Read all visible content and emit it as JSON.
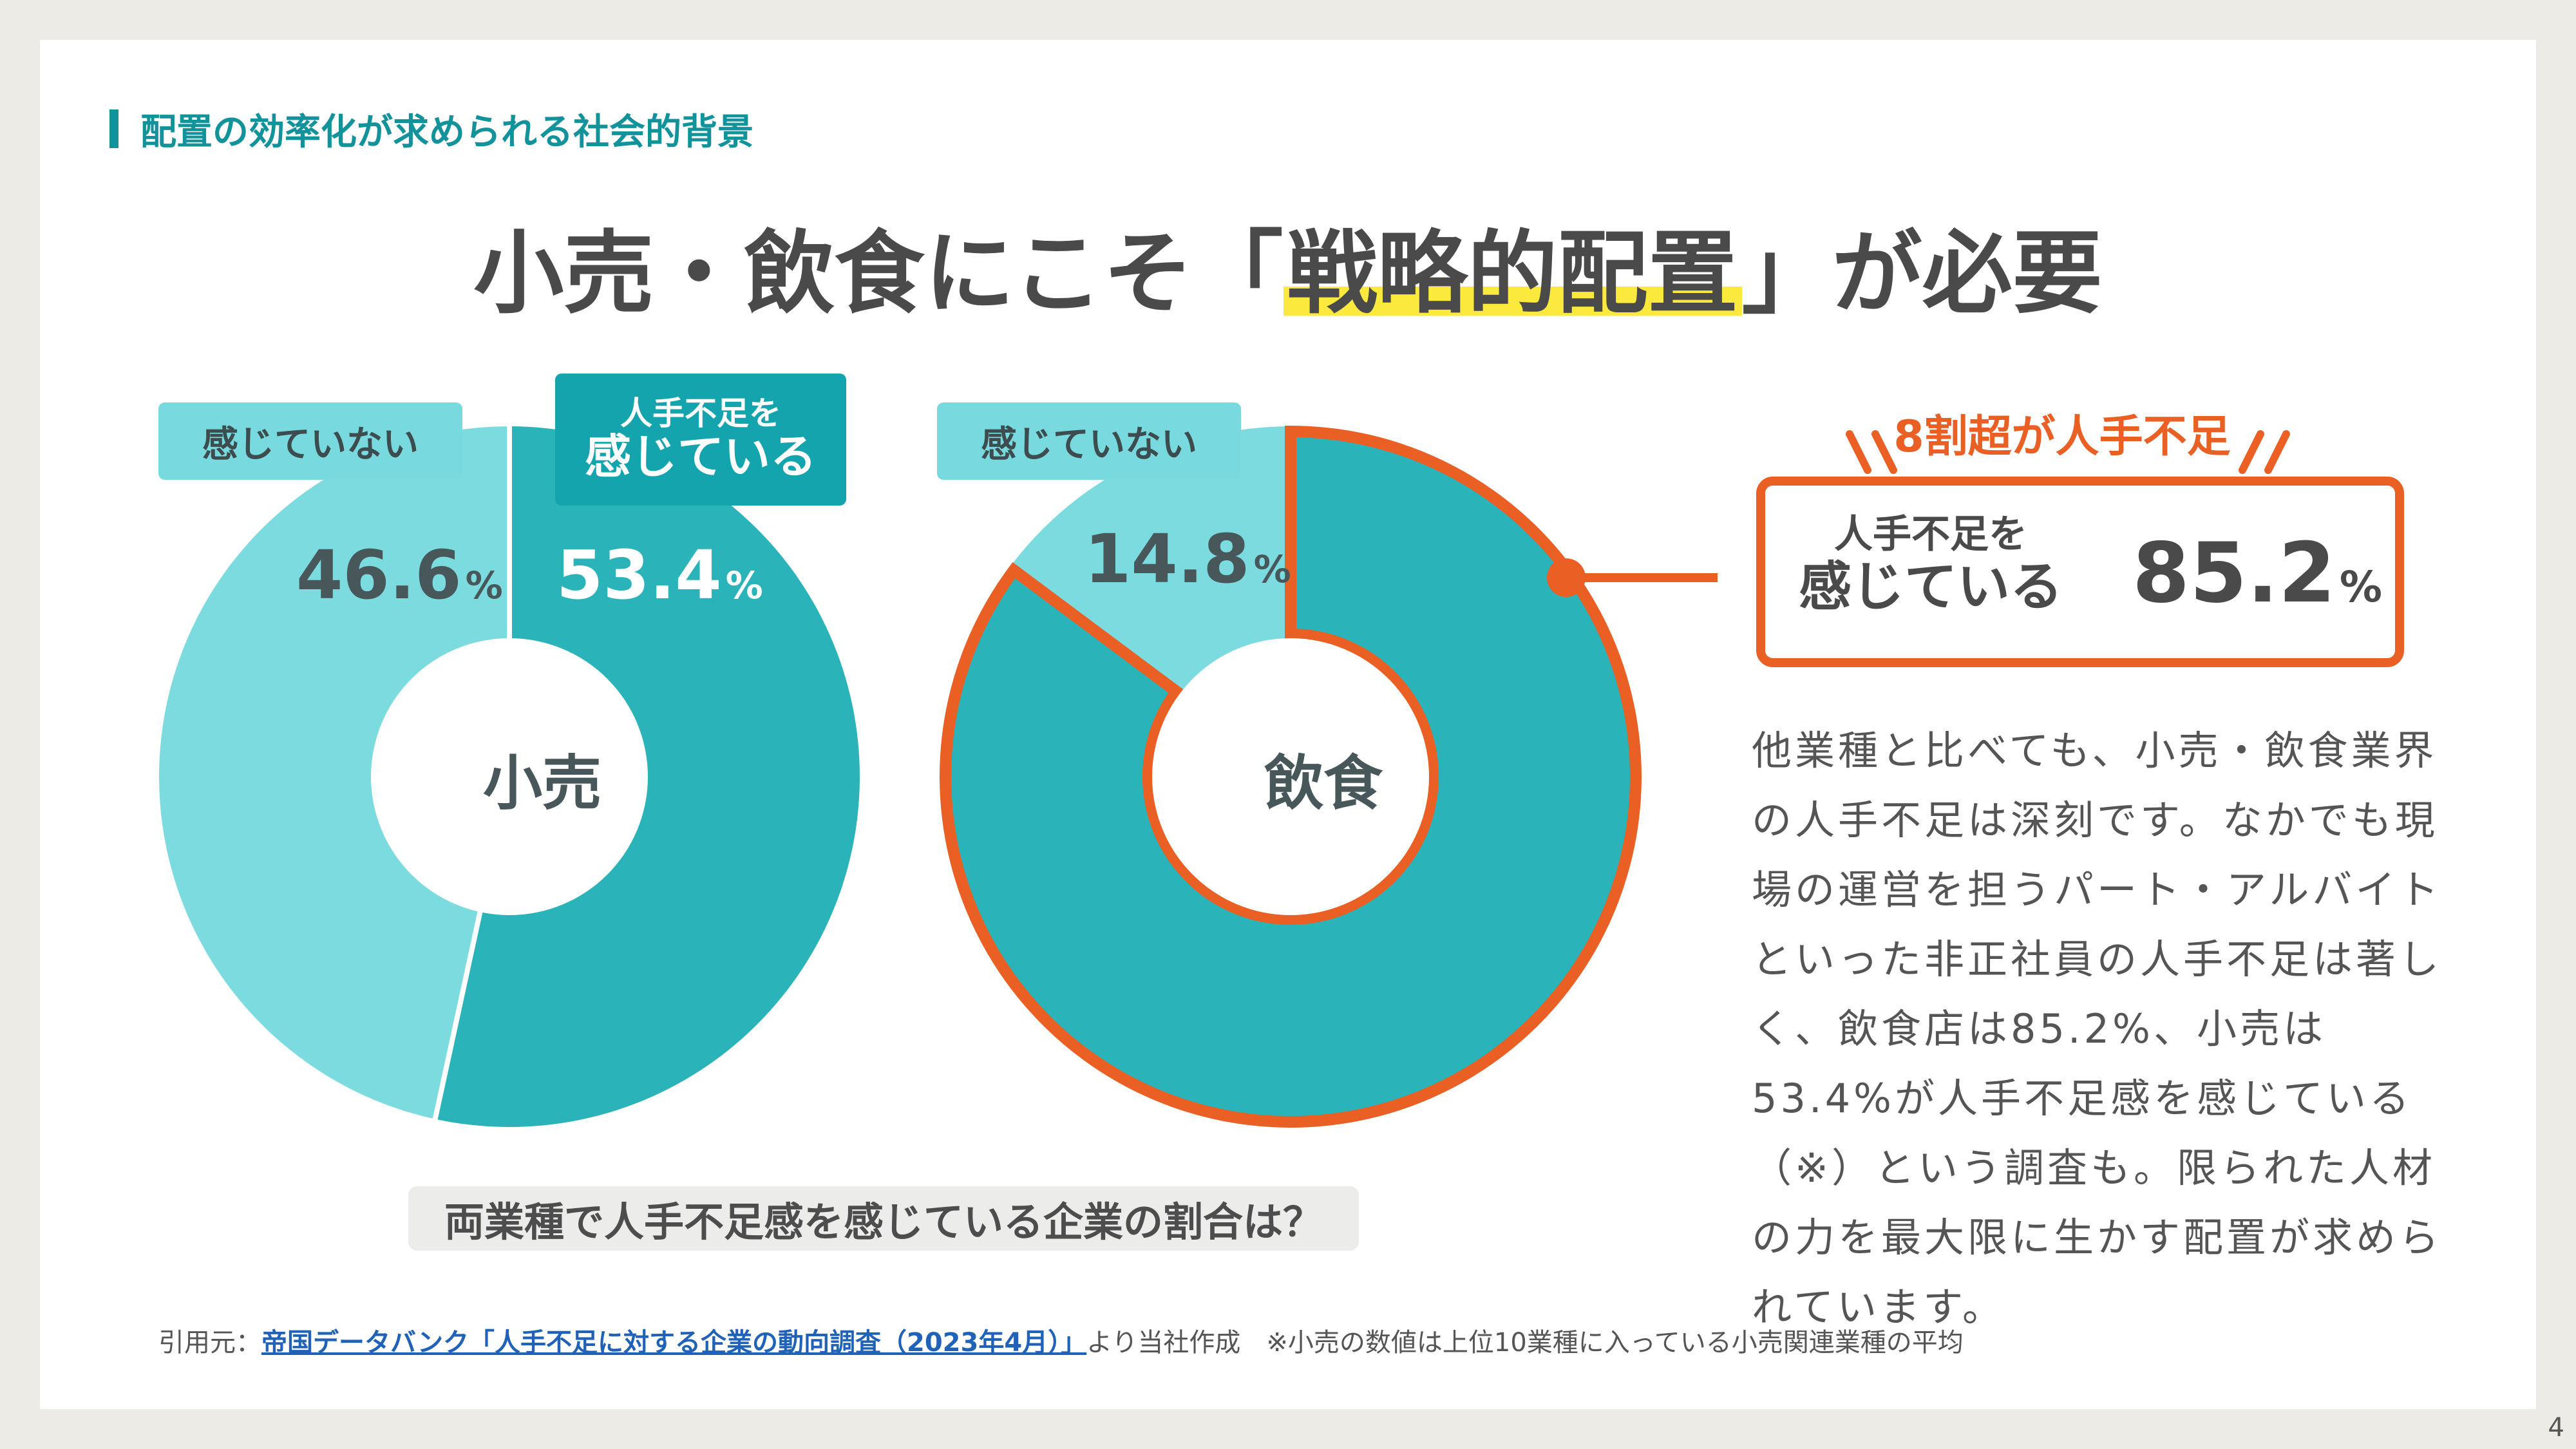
{
  "section_title": "配置の効率化が求められる社会的背景",
  "headline": {
    "before": "小売・飲食にこそ",
    "open_bracket": "「",
    "highlight": "戦略的配置",
    "close_bracket": "」",
    "after": "が必要"
  },
  "colors": {
    "teal_dark": "#2ab3b9",
    "teal_light": "#7bdbdf",
    "accent_orange": "#ea5f24",
    "highlight_yellow": "#fbe93d",
    "section_teal": "#12929b"
  },
  "chart_data": [
    {
      "type": "pie",
      "style": "donut",
      "center_label": "小売",
      "labels": {
        "not_feeling": "感じていない",
        "feeling_line1": "人手不足を",
        "feeling_line2": "感じている"
      },
      "slices": [
        {
          "label": "感じている",
          "value": 53.4,
          "display": "53.4",
          "color": "#2ab3b9"
        },
        {
          "label": "感じていない",
          "value": 46.6,
          "display": "46.6",
          "color": "#7bdbdf"
        }
      ],
      "unit": "%"
    },
    {
      "type": "pie",
      "style": "donut",
      "center_label": "飲食",
      "labels": {
        "not_feeling": "感じていない"
      },
      "slices": [
        {
          "label": "感じている",
          "value": 85.2,
          "display": "85.2",
          "color": "#2ab3b9",
          "outlined": true
        },
        {
          "label": "感じていない",
          "value": 14.8,
          "display": "14.8",
          "color": "#7bdbdf"
        }
      ],
      "unit": "%"
    }
  ],
  "question_caption": "両業種で人手不足感を感じている企業の割合は？",
  "callout": {
    "head": "8割超が人手不足",
    "label_line1": "人手不足を",
    "label_line2": "感じている",
    "value": "85.2",
    "unit": "%"
  },
  "body_text": "他業種と比べても、小売・飲食業界の人手不足は深刻です。なかでも現場の運営を担うパート・アルバイトといった非正社員の人手不足は著しく、飲食店は85.2%、小売は53.4%が人手不足感を感じている（※）という調査も。限られた人材の力を最大限に生かす配置が求められています。",
  "source": {
    "prefix": "引用元：",
    "link_text": "帝国データバンク「人手不足に対する企業の動向調査（2023年4月）」",
    "suffix": "より当社作成　※小売の数値は上位10業種に入っている小売関連業種の平均"
  },
  "page_number": "4"
}
